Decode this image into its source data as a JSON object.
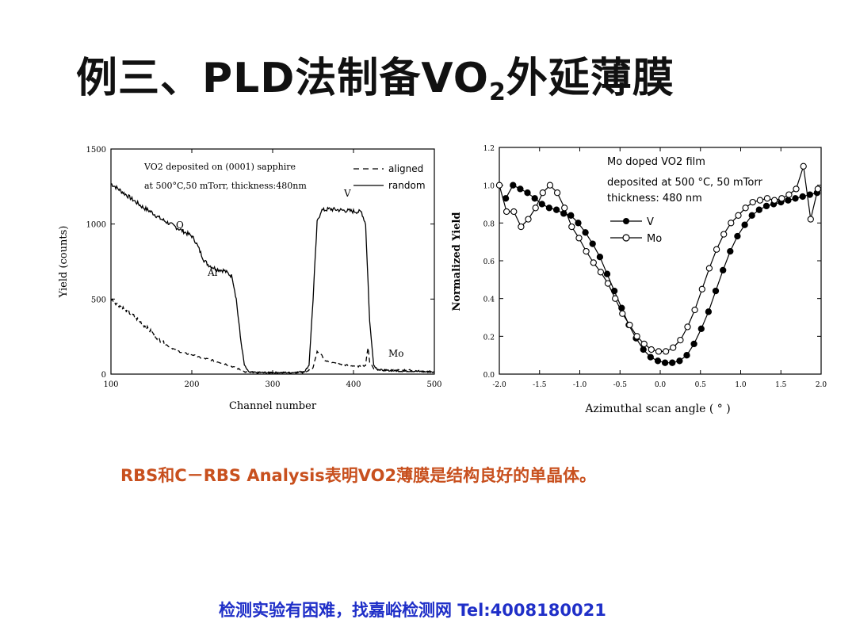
{
  "slide": {
    "title_pre": "例三、PLD法制备VO",
    "title_sub": "2",
    "title_post": "外延薄膜",
    "caption": "RBS和C－RBS Analysis表明VO2薄膜是结构良好的单晶体。",
    "footer": "检测实验有困难，找嘉峪检测网 Tel:4008180021"
  },
  "chart_data": [
    {
      "type": "line",
      "xlabel": "Channel number",
      "ylabel": "Yield (counts)",
      "xlim": [
        100,
        500
      ],
      "ylim": [
        0,
        1500
      ],
      "xticks": [
        "100",
        "200",
        "300",
        "400",
        "500"
      ],
      "yticks": [
        "0",
        "500",
        "1000",
        "1500"
      ],
      "annotation_line1": "VO2 deposited on (0001) sapphire",
      "annotation_line2": "at 500°C,50 mTorr, thickness:480nm",
      "legend": [
        "aligned",
        "random"
      ],
      "peak_labels": [
        "O",
        "Al",
        "V",
        "Mo"
      ],
      "series": [
        {
          "name": "random",
          "style": "solid",
          "x": [
            100,
            110,
            120,
            130,
            140,
            150,
            160,
            170,
            180,
            190,
            200,
            205,
            210,
            215,
            220,
            230,
            240,
            250,
            255,
            260,
            265,
            270,
            280,
            290,
            300,
            310,
            320,
            330,
            340,
            345,
            350,
            355,
            360,
            370,
            380,
            390,
            400,
            410,
            415,
            420,
            425,
            430,
            440,
            450,
            460,
            470,
            480,
            490,
            500
          ],
          "y": [
            1270,
            1230,
            1190,
            1150,
            1110,
            1080,
            1040,
            1010,
            980,
            950,
            920,
            880,
            820,
            760,
            730,
            700,
            690,
            650,
            500,
            250,
            60,
            15,
            10,
            10,
            10,
            10,
            10,
            12,
            20,
            60,
            500,
            1010,
            1090,
            1100,
            1095,
            1090,
            1085,
            1080,
            1000,
            350,
            60,
            30,
            25,
            22,
            20,
            20,
            18,
            15,
            12
          ]
        },
        {
          "name": "aligned",
          "style": "dashed",
          "x": [
            100,
            110,
            120,
            130,
            140,
            150,
            160,
            170,
            180,
            190,
            200,
            210,
            220,
            230,
            240,
            250,
            255,
            260,
            265,
            270,
            280,
            290,
            300,
            310,
            320,
            330,
            340,
            350,
            355,
            360,
            365,
            370,
            380,
            390,
            400,
            410,
            415,
            418,
            420,
            425,
            430,
            440,
            450,
            460,
            470,
            480,
            490,
            500
          ],
          "y": [
            500,
            460,
            420,
            380,
            330,
            280,
            230,
            190,
            160,
            140,
            130,
            110,
            100,
            85,
            70,
            50,
            40,
            30,
            15,
            10,
            10,
            10,
            10,
            10,
            10,
            10,
            10,
            40,
            150,
            130,
            90,
            80,
            70,
            60,
            55,
            50,
            60,
            180,
            80,
            40,
            30,
            25,
            25,
            28,
            25,
            20,
            18,
            15
          ]
        }
      ]
    },
    {
      "type": "line",
      "xlabel": "Azimuthal scan angle ( ° )",
      "ylabel": "Normalized Yield",
      "xlim": [
        -2.0,
        2.0
      ],
      "ylim": [
        0.0,
        1.2
      ],
      "xticks": [
        "-2.0",
        "-1.5",
        "-1.0",
        "-0.5",
        "0.0",
        "0.5",
        "1.0",
        "1.5",
        "2.0"
      ],
      "yticks": [
        "0.0",
        "0.2",
        "0.4",
        "0.6",
        "0.8",
        "1.0",
        "1.2"
      ],
      "annotation_line1": "Mo doped VO2 film",
      "annotation_line2": "deposited at 500 °C, 50 mTorr",
      "annotation_line3": "thickness: 480 nm",
      "series": [
        {
          "name": "V",
          "marker": "filled-circle",
          "x": [
            -1.92,
            -1.83,
            -1.74,
            -1.65,
            -1.56,
            -1.47,
            -1.38,
            -1.29,
            -1.2,
            -1.11,
            -1.02,
            -0.93,
            -0.84,
            -0.75,
            -0.66,
            -0.57,
            -0.48,
            -0.39,
            -0.3,
            -0.21,
            -0.12,
            -0.03,
            0.06,
            0.15,
            0.24,
            0.33,
            0.42,
            0.51,
            0.6,
            0.69,
            0.78,
            0.87,
            0.96,
            1.05,
            1.14,
            1.23,
            1.32,
            1.41,
            1.5,
            1.59,
            1.68,
            1.77,
            1.86,
            1.95
          ],
          "y": [
            0.93,
            1.0,
            0.98,
            0.96,
            0.93,
            0.9,
            0.88,
            0.87,
            0.85,
            0.84,
            0.8,
            0.75,
            0.69,
            0.62,
            0.53,
            0.44,
            0.35,
            0.26,
            0.19,
            0.13,
            0.09,
            0.07,
            0.06,
            0.06,
            0.07,
            0.1,
            0.16,
            0.24,
            0.33,
            0.44,
            0.55,
            0.65,
            0.73,
            0.79,
            0.84,
            0.87,
            0.89,
            0.9,
            0.91,
            0.92,
            0.93,
            0.94,
            0.95,
            0.96
          ]
        },
        {
          "name": "Mo",
          "marker": "open-circle",
          "x": [
            -2.0,
            -1.91,
            -1.82,
            -1.73,
            -1.64,
            -1.55,
            -1.46,
            -1.37,
            -1.28,
            -1.19,
            -1.1,
            -1.01,
            -0.92,
            -0.83,
            -0.74,
            -0.65,
            -0.56,
            -0.47,
            -0.38,
            -0.29,
            -0.2,
            -0.11,
            -0.02,
            0.07,
            0.16,
            0.25,
            0.34,
            0.43,
            0.52,
            0.61,
            0.7,
            0.79,
            0.88,
            0.97,
            1.06,
            1.15,
            1.24,
            1.33,
            1.42,
            1.51,
            1.6,
            1.69,
            1.78,
            1.87,
            1.96
          ],
          "y": [
            1.0,
            0.86,
            0.86,
            0.78,
            0.82,
            0.88,
            0.96,
            1.0,
            0.96,
            0.88,
            0.78,
            0.72,
            0.65,
            0.59,
            0.54,
            0.48,
            0.4,
            0.32,
            0.26,
            0.2,
            0.16,
            0.13,
            0.12,
            0.12,
            0.14,
            0.18,
            0.25,
            0.34,
            0.45,
            0.56,
            0.66,
            0.74,
            0.8,
            0.84,
            0.88,
            0.91,
            0.92,
            0.93,
            0.92,
            0.93,
            0.95,
            0.98,
            1.1,
            0.82,
            0.98
          ]
        }
      ]
    }
  ]
}
